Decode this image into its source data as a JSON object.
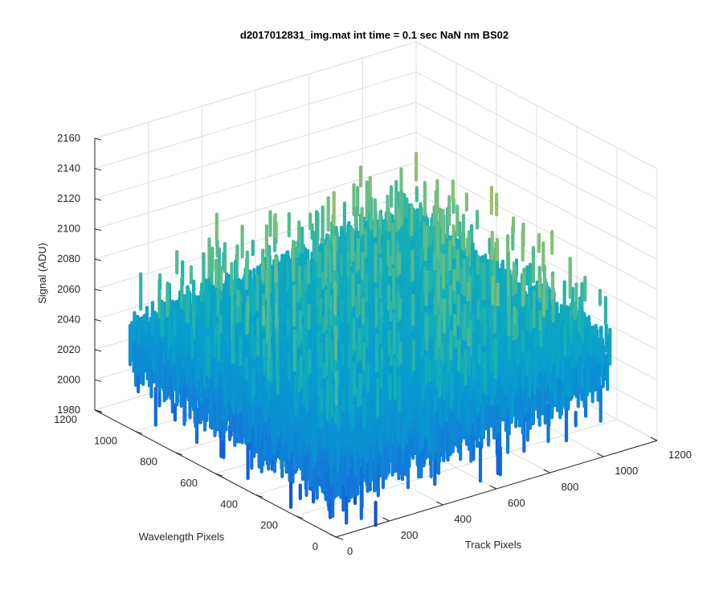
{
  "chart_data": {
    "type": "surface",
    "title": "d2017012831_img.mat int time = 0.1 sec  NaN nm BS02",
    "xlabel": "Track Pixels",
    "ylabel": "Wavelength Pixels",
    "zlabel": "Signal (ADU)",
    "xlim": [
      0,
      1200
    ],
    "ylim": [
      0,
      1200
    ],
    "zlim": [
      1980,
      2160
    ],
    "xticks": [
      "0",
      "200",
      "400",
      "600",
      "800",
      "1000",
      "1200"
    ],
    "yticks": [
      "0",
      "200",
      "400",
      "600",
      "800",
      "1000",
      "1200"
    ],
    "zticks": [
      "1980",
      "2000",
      "2020",
      "2040",
      "2060",
      "2080",
      "2100",
      "2120",
      "2140",
      "2160"
    ],
    "grid": true,
    "colormap": "parula",
    "data_extent": {
      "x": [
        0,
        1024
      ],
      "y": [
        0,
        1024
      ]
    },
    "signal": {
      "baseline": 2030,
      "noise_range": [
        1995,
        2155
      ],
      "gradient": "higher signal toward high Track Pixels and high Wavelength Pixels"
    }
  }
}
